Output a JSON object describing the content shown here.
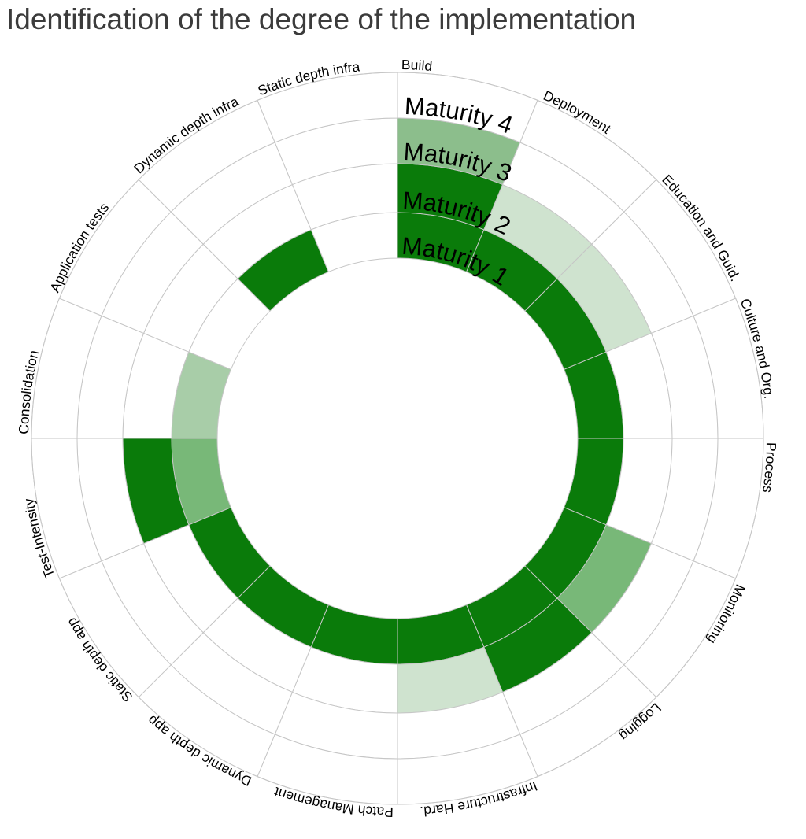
{
  "title": "Identification of the degree of the implementation",
  "colors": {
    "title_text": "#3b3b3b",
    "label_text": "#000000",
    "grid_line": "#c6c6c6",
    "background": "#ffffff",
    "palette": {
      "full": "#0a7b0a",
      "high": "#78b878",
      "mid": "#8cbe8c",
      "low": "#a8cda8",
      "faint": "#cfe3cf",
      "none": "#ffffff"
    }
  },
  "chart_data": {
    "type": "radial-heatmap",
    "title": "Identification of the degree of the implementation",
    "grid": true,
    "legend": "none",
    "rings_inner_to_outer": [
      "Maturity 1",
      "Maturity 2",
      "Maturity 3",
      "Maturity 4"
    ],
    "ring_labels_located_in_sector": "Build",
    "sector_sweep_deg": 22.5,
    "first_sector_start_deg_clockwise_from_top": 0,
    "sectors_clockwise_from_top": [
      "Build",
      "Deployment",
      "Education and Guid.",
      "Culture and Org.",
      "Process",
      "Monitoring",
      "Logging",
      "Infrastructure Hard.",
      "Patch Management",
      "Dynamic depth app",
      "Static depth app",
      "Test-Intensity",
      "Consolidation",
      "Application tests",
      "Dynamic depth infra",
      "Static depth infra"
    ],
    "fills_per_sector_m1_to_m4": [
      [
        "full",
        "full",
        "mid",
        null
      ],
      [
        "full",
        "faint",
        null,
        null
      ],
      [
        "full",
        "faint",
        null,
        null
      ],
      [
        "full",
        null,
        null,
        null
      ],
      [
        "full",
        null,
        null,
        null
      ],
      [
        "full",
        "high",
        null,
        null
      ],
      [
        "full",
        "full",
        null,
        null
      ],
      [
        "full",
        "faint",
        null,
        null
      ],
      [
        "full",
        null,
        null,
        null
      ],
      [
        "full",
        null,
        null,
        null
      ],
      [
        "full",
        null,
        null,
        null
      ],
      [
        "high",
        "full",
        null,
        null
      ],
      [
        "low",
        null,
        null,
        null
      ],
      [
        null,
        null,
        null,
        null
      ],
      [
        "full",
        null,
        null,
        null
      ],
      [
        null,
        null,
        null,
        null
      ]
    ]
  }
}
